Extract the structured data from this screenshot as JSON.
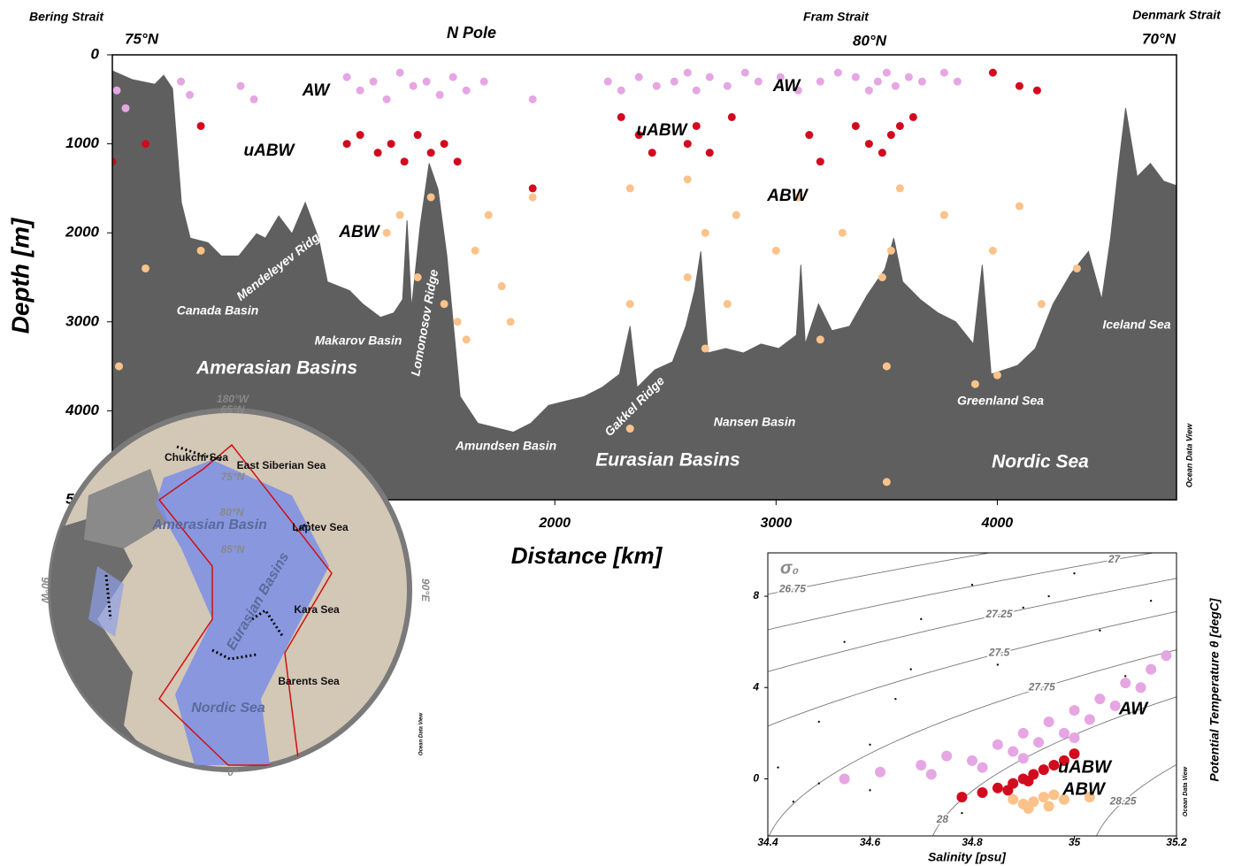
{
  "chart_data": [
    {
      "type": "section",
      "xlabel": "Distance  [km]",
      "ylabel": "Depth  [m]",
      "xlim": [
        0,
        4810
      ],
      "ylim": [
        0,
        5000
      ],
      "xticks": [
        2000,
        3000,
        4000
      ],
      "yticks": [
        0,
        1000,
        2000,
        3000,
        4000,
        5000
      ],
      "annotations": [
        "Bering Strait",
        "75°N",
        "N Pole",
        "Fram Strait",
        "80°N",
        "Denmark Strait",
        "70°N"
      ],
      "regions": [
        "Canada Basin",
        "Mendeleyev Ridge",
        "Makarov Basin",
        "Lomonosov Ridge",
        "Amundsen Basin",
        "Gakkel Ridge",
        "Nansen Basin",
        "Greenland Sea",
        "Iceland Sea",
        "Amerasian Basins",
        "Eurasian Basins",
        "Nordic Sea"
      ],
      "watermark": "Ocean Data View",
      "bathymetry": {
        "color": "#5f5f5f",
        "x": [
          0,
          92,
          192,
          232,
          272,
          312,
          352,
          432,
          492,
          572,
          652,
          692,
          752,
          812,
          872,
          932,
          972,
          1072,
          1132,
          1212,
          1272,
          1312,
          1332,
          1352,
          1392,
          1432,
          1472,
          1512,
          1572,
          1652,
          1732,
          1812,
          1892,
          1972,
          2052,
          2132,
          2212,
          2292,
          2340,
          2372,
          2452,
          2532,
          2592,
          2632,
          2660,
          2692,
          2772,
          2852,
          2932,
          3012,
          3092,
          3112,
          3132,
          3192,
          3252,
          3332,
          3412,
          3492,
          3532,
          3572,
          3652,
          3732,
          3812,
          3892,
          3932,
          3972,
          4032,
          4092,
          4172,
          4252,
          4332,
          4412,
          4472,
          4512,
          4552,
          4580,
          4632,
          4692,
          4752,
          4810
        ],
        "values": [
          180,
          280,
          330,
          230,
          380,
          1660,
          2060,
          2110,
          2260,
          2260,
          2010,
          2060,
          1810,
          2010,
          1660,
          2060,
          2550,
          2650,
          2800,
          2950,
          2900,
          2750,
          1860,
          2850,
          1910,
          1220,
          1510,
          2260,
          3840,
          4140,
          4190,
          4240,
          4140,
          3940,
          3890,
          3840,
          3740,
          3590,
          3050,
          3740,
          3540,
          3450,
          3050,
          2650,
          2210,
          3350,
          3300,
          3350,
          3250,
          3300,
          3150,
          2360,
          3250,
          2800,
          3100,
          3050,
          2700,
          2410,
          2060,
          2550,
          2750,
          2900,
          3000,
          3250,
          2360,
          3590,
          3540,
          3490,
          3300,
          2800,
          2460,
          2210,
          2750,
          2060,
          1170,
          600,
          1370,
          1220,
          1420,
          1470
        ]
      },
      "series": [
        {
          "name": "AW",
          "color": "#e5a6e3",
          "x": [
            20,
            60,
            310,
            350,
            580,
            640,
            1060,
            1120,
            1180,
            1240,
            1300,
            1360,
            1420,
            1480,
            1540,
            1600,
            1680,
            1900,
            2240,
            2300,
            2380,
            2460,
            2540,
            2600,
            2640,
            2700,
            2780,
            2860,
            2920,
            3020,
            3100,
            3200,
            3280,
            3360,
            3420,
            3460,
            3500,
            3540,
            3600,
            3660,
            3760,
            3820
          ],
          "values": [
            400,
            600,
            300,
            450,
            350,
            500,
            250,
            400,
            300,
            500,
            200,
            350,
            300,
            450,
            250,
            400,
            300,
            500,
            300,
            400,
            250,
            350,
            300,
            200,
            400,
            250,
            350,
            200,
            300,
            250,
            400,
            300,
            200,
            250,
            400,
            300,
            200,
            350,
            250,
            300,
            200,
            300
          ]
        },
        {
          "name": "uABW",
          "color": "#d20a1e",
          "x": [
            0,
            150,
            400,
            1060,
            1120,
            1200,
            1260,
            1320,
            1380,
            1440,
            1500,
            1560,
            1900,
            2300,
            2380,
            2440,
            2600,
            2640,
            2700,
            2800,
            3150,
            3200,
            3360,
            3420,
            3480,
            3520,
            3560,
            3620,
            3980,
            4100,
            4180
          ],
          "values": [
            1200,
            1000,
            800,
            1000,
            900,
            1100,
            1000,
            1200,
            900,
            1100,
            1000,
            1200,
            1500,
            700,
            900,
            1100,
            1000,
            800,
            1100,
            700,
            900,
            1200,
            800,
            1000,
            1100,
            900,
            800,
            700,
            200,
            350,
            400
          ]
        },
        {
          "name": "ABW",
          "color": "#fbc28a",
          "x": [
            30,
            150,
            400,
            1240,
            1300,
            1380,
            1440,
            1500,
            1560,
            1600,
            1640,
            1700,
            1760,
            1800,
            1900,
            2340,
            2340,
            2340,
            2600,
            2600,
            2680,
            2680,
            2780,
            2820,
            3000,
            3100,
            3200,
            3300,
            3480,
            3500,
            3500,
            3520,
            3560,
            3760,
            3900,
            3980,
            4000,
            4100,
            4200,
            4360
          ],
          "values": [
            3500,
            2400,
            2200,
            2000,
            1800,
            2500,
            1600,
            2800,
            3000,
            3200,
            2200,
            1800,
            2600,
            3000,
            1600,
            1500,
            2800,
            4200,
            1400,
            2500,
            3300,
            2000,
            2800,
            1800,
            2200,
            1600,
            3200,
            2000,
            2500,
            3500,
            4800,
            2200,
            1500,
            1800,
            3700,
            2200,
            3600,
            1700,
            2800,
            2400
          ]
        }
      ]
    },
    {
      "type": "scatter",
      "xlabel": "Salinity [psu]",
      "ylabel": "Potential Temperature θ [degC]",
      "xlim": [
        34.4,
        35.2
      ],
      "ylim": [
        -2.5,
        9.9
      ],
      "xticks": [
        34.4,
        34.6,
        34.8,
        35,
        35.2
      ],
      "yticks": [
        0,
        4,
        8
      ],
      "watermark": "Ocean Data View",
      "contours": {
        "title": "σ₀",
        "levels": [
          26.75,
          27,
          27.25,
          27.5,
          27.75,
          28,
          28.25
        ]
      },
      "series": [
        {
          "color": "#111111",
          "x": [
            34.42,
            34.5,
            34.55,
            34.6,
            34.65,
            34.7,
            34.75,
            34.8,
            34.85,
            34.9,
            35.0,
            35.05,
            35.1,
            34.45,
            34.6,
            34.78,
            34.95,
            35.15,
            34.5,
            34.68
          ],
          "values": [
            0.5,
            2.5,
            6.0,
            -0.5,
            3.5,
            7.0,
            1.0,
            8.5,
            5.0,
            7.5,
            9.0,
            6.5,
            4.5,
            -1.0,
            1.5,
            -1.5,
            8.0,
            7.8,
            -0.2,
            4.8
          ]
        },
        {
          "name": "AW",
          "color": "#e5a6e3",
          "x": [
            34.55,
            34.62,
            34.7,
            34.75,
            34.8,
            34.85,
            34.88,
            34.9,
            34.93,
            34.95,
            34.98,
            35.0,
            35.03,
            35.05,
            35.08,
            35.1,
            35.13,
            35.15,
            35.18,
            34.72,
            34.82,
            34.9,
            35.0
          ],
          "values": [
            0.0,
            0.3,
            0.6,
            1.0,
            0.8,
            1.5,
            1.2,
            2.0,
            1.6,
            2.5,
            2.0,
            3.0,
            2.6,
            3.5,
            3.2,
            4.2,
            4.0,
            4.8,
            5.4,
            0.2,
            0.5,
            0.9,
            1.8
          ]
        },
        {
          "name": "uABW",
          "color": "#d20a1e",
          "x": [
            34.78,
            34.82,
            34.85,
            34.88,
            34.9,
            34.92,
            34.94,
            34.96,
            34.98,
            35.0,
            34.87,
            34.91
          ],
          "values": [
            -0.8,
            -0.6,
            -0.4,
            -0.2,
            0.0,
            0.2,
            0.4,
            0.6,
            0.8,
            1.1,
            -0.5,
            -0.1
          ]
        },
        {
          "name": "ABW",
          "color": "#fbc28a",
          "x": [
            34.88,
            34.9,
            34.92,
            34.94,
            34.96,
            34.98,
            34.91,
            34.95,
            35.03
          ],
          "values": [
            -0.9,
            -1.1,
            -1.0,
            -0.8,
            -0.7,
            -0.9,
            -1.3,
            -1.2,
            -0.8
          ]
        }
      ]
    }
  ],
  "map": {
    "labels": [
      "180°W",
      "65°N",
      "Chukchi Sea",
      "East Siberian Sea",
      "75°N",
      "80°N",
      "85°N",
      "Amerasian Basin",
      "Laptev Sea",
      "Eurasian Basins",
      "Kara Sea",
      "Barents Sea",
      "Nordic Sea",
      "90°E",
      "90°W",
      "0°"
    ],
    "watermark": "Ocean Data View"
  }
}
